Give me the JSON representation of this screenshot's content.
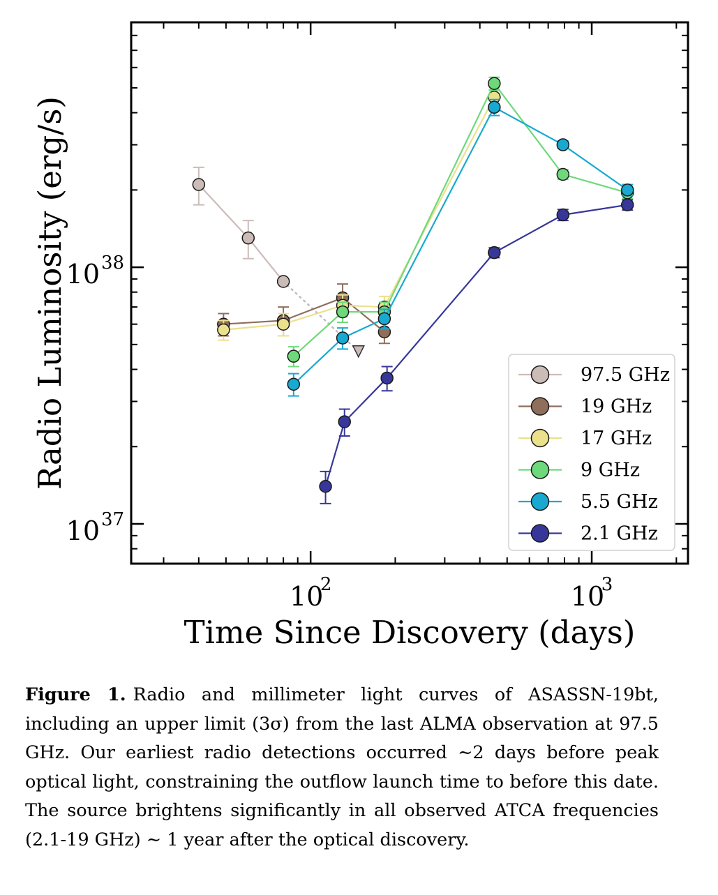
{
  "chart_data": {
    "type": "scatter",
    "xscale": "log",
    "yscale": "log",
    "xlim": [
      23,
      2200
    ],
    "ylim": [
      7e+36,
      9e+38
    ],
    "xlabel": "Time Since Discovery (days)",
    "ylabel": "Radio Luminosity (erg/s)",
    "xticks": [
      {
        "value": 100,
        "base": "10",
        "exp": "2"
      },
      {
        "value": 1000,
        "base": "10",
        "exp": "3"
      }
    ],
    "yticks": [
      {
        "value": 1e+37,
        "base": "10",
        "exp": "37"
      },
      {
        "value": 1e+38,
        "base": "10",
        "exp": "38"
      }
    ],
    "legend_position": "lower-right",
    "series": [
      {
        "name": "97.5 GHz",
        "color": "#cbbcb8",
        "x": [
          40,
          60,
          80
        ],
        "y": [
          2.1e+38,
          1.3e+38,
          8.8e+37
        ],
        "err": [
          3.5e+37,
          2.2e+37,
          2e+36
        ]
      },
      {
        "name": "19 GHz",
        "color": "#8f6e5c",
        "x": [
          49,
          80,
          130,
          183
        ],
        "y": [
          6e+37,
          6.2e+37,
          7.6e+37,
          5.6e+37
        ],
        "err": [
          6e+36,
          8e+36,
          1e+37,
          5.5e+36
        ]
      },
      {
        "name": "17 GHz",
        "color": "#ebe08c",
        "x": [
          49,
          80,
          130,
          183,
          450
        ],
        "y": [
          5.7e+37,
          6e+37,
          7.1e+37,
          7e+37,
          4.6e+38
        ],
        "err": [
          5e+36,
          6e+36,
          7e+36,
          7e+36,
          4e+37
        ]
      },
      {
        "name": "9 GHz",
        "color": "#6ed97a",
        "x": [
          87,
          130,
          183,
          450,
          790,
          1340
        ],
        "y": [
          4.5e+37,
          6.7e+37,
          6.7e+37,
          5.2e+38,
          2.3e+38,
          1.95e+38
        ],
        "err": [
          4e+36,
          6e+36,
          6e+36,
          3e+37,
          1e+37,
          1e+37
        ]
      },
      {
        "name": "5.5 GHz",
        "color": "#19a9d0",
        "x": [
          87,
          130,
          183,
          450,
          790,
          1340
        ],
        "y": [
          3.5e+37,
          5.3e+37,
          6.3e+37,
          4.2e+38,
          3e+38,
          2e+38
        ],
        "err": [
          3.5e+36,
          5e+36,
          5.5e+36,
          3e+37,
          1e+37,
          1e+37
        ]
      },
      {
        "name": "2.1 GHz",
        "color": "#37379a",
        "x": [
          113,
          132,
          187,
          450,
          790,
          1340
        ],
        "y": [
          1.4e+37,
          2.5e+37,
          3.7e+37,
          1.14e+38,
          1.6e+38,
          1.75e+38
        ],
        "err": [
          2e+36,
          3e+36,
          4e+36,
          5e+36,
          8e+36,
          8e+36
        ]
      }
    ],
    "upper_limit": {
      "name": "97.5 GHz upper limit (3σ)",
      "x": 148,
      "y": 4.7e+37,
      "from": {
        "x": 80,
        "y": 8.8e+37
      }
    }
  },
  "caption": {
    "label": "Figure 1.",
    "text": "Radio and millimeter light curves of ASASSN-19bt, including an upper limit (3σ) from the last ALMA observation at 97.5 GHz. Our earliest radio detections occurred ∼2 days before peak optical light, constraining the outflow launch time to before this date. The source brightens significantly in all observed ATCA frequencies (2.1-19 GHz) ∼ 1 year after the optical discovery."
  }
}
